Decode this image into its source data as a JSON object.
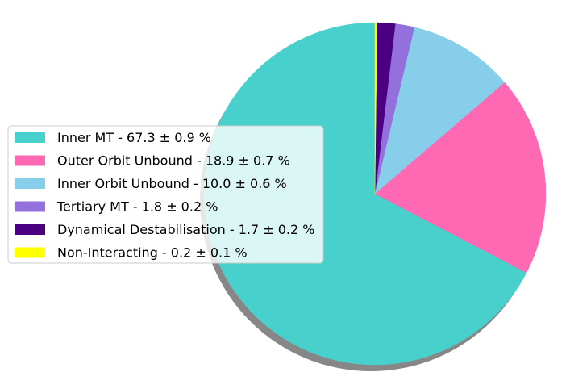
{
  "chart_data": {
    "type": "pie",
    "title": "",
    "start_angle_deg": 90,
    "direction": "clockwise",
    "shadow": true,
    "legend_position": "center-left",
    "slices": [
      {
        "label": "Inner MT - 67.3 ± 0.9 %",
        "value": 67.3,
        "color": "#48D1CC"
      },
      {
        "label": "Outer Orbit Unbound - 18.9 ± 0.7 %",
        "value": 18.9,
        "color": "#FF69B4"
      },
      {
        "label": "Inner Orbit Unbound - 10.0 ± 0.6 %",
        "value": 10.0,
        "color": "#87CEEB"
      },
      {
        "label": "Tertiary MT - 1.8 ± 0.2 %",
        "value": 1.8,
        "color": "#9370DB"
      },
      {
        "label": "Dynamical Destabilisation - 1.7 ± 0.2 %",
        "value": 1.7,
        "color": "#4B0082"
      },
      {
        "label": "Non-Interacting - 0.2 ± 0.1 %",
        "value": 0.2,
        "color": "#FFFF00"
      }
    ]
  }
}
